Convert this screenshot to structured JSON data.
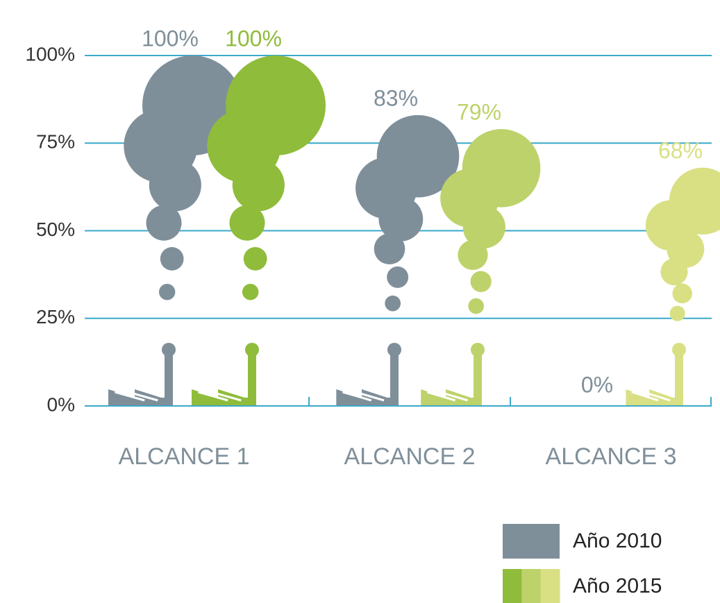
{
  "chart_data": {
    "type": "smoke-bar",
    "categories": [
      "ALCANCE 1",
      "ALCANCE 2",
      "ALCANCE 3"
    ],
    "series": [
      {
        "name": "Año 2010",
        "color": "#7f8f99",
        "values": [
          100,
          83,
          0
        ],
        "value_labels": [
          "100%",
          "83%",
          "0%"
        ]
      },
      {
        "name": "Año 2015",
        "colors": [
          "#8fbc3a",
          "#bdd26a",
          "#d9e084"
        ],
        "values": [
          100,
          79,
          68
        ],
        "value_labels": [
          "100%",
          "79%",
          "68%"
        ]
      }
    ],
    "ylim": [
      0,
      100
    ],
    "yticks": [
      {
        "value": 0,
        "label": "0%"
      },
      {
        "value": 25,
        "label": "25%"
      },
      {
        "value": 50,
        "label": "50%"
      },
      {
        "value": 75,
        "label": "75%"
      },
      {
        "value": 100,
        "label": "100%"
      }
    ],
    "grid": true,
    "grid_color": "#3aa9c9"
  }
}
